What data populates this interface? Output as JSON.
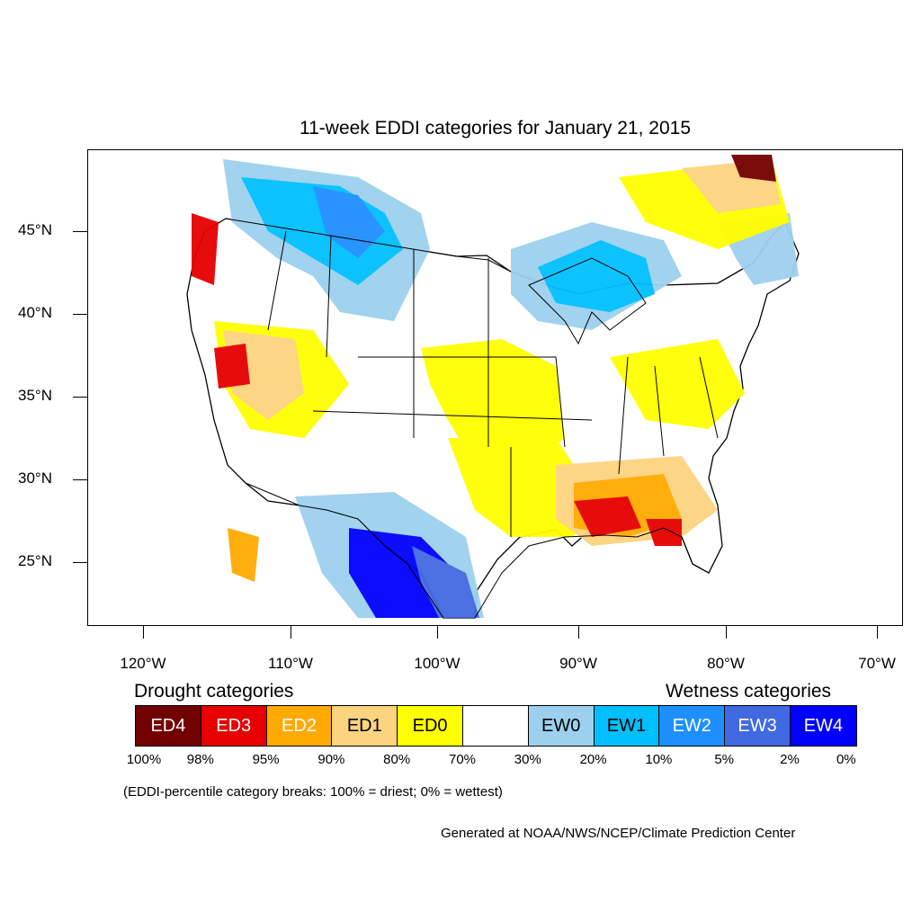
{
  "title": "11-week EDDI categories for January 21, 2015",
  "lat_labels": [
    "45°N",
    "40°N",
    "35°N",
    "30°N",
    "25°N"
  ],
  "lon_labels": [
    "120°W",
    "110°W",
    "100°W",
    "90°W",
    "80°W",
    "70°W"
  ],
  "legend": {
    "drought_heading": "Drought categories",
    "wetness_heading": "Wetness categories",
    "categories": [
      {
        "label": "ED4",
        "color": "#730000",
        "text_color": "#ffffff"
      },
      {
        "label": "ED3",
        "color": "#e60000",
        "text_color": "#ffffff"
      },
      {
        "label": "ED2",
        "color": "#ffaa00",
        "text_color": "#ffffff"
      },
      {
        "label": "ED1",
        "color": "#fcd37f",
        "text_color": "#000000"
      },
      {
        "label": "ED0",
        "color": "#ffff00",
        "text_color": "#000000"
      },
      {
        "label": "",
        "color": "#ffffff",
        "text_color": "#000000"
      },
      {
        "label": "EW0",
        "color": "#9dd0ee",
        "text_color": "#000000"
      },
      {
        "label": "EW1",
        "color": "#00bfff",
        "text_color": "#000000"
      },
      {
        "label": "EW2",
        "color": "#1e8fff",
        "text_color": "#ffffff"
      },
      {
        "label": "EW3",
        "color": "#4169e1",
        "text_color": "#ffffff"
      },
      {
        "label": "EW4",
        "color": "#0000ff",
        "text_color": "#ffffff"
      }
    ],
    "breaks": [
      "100%",
      "98%",
      "95%",
      "90%",
      "80%",
      "70%",
      "30%",
      "20%",
      "10%",
      "5%",
      "2%",
      "0%"
    ]
  },
  "note": "(EDDI-percentile category breaks: 100% = driest; 0% = wettest)",
  "credit": "Generated at NOAA/NWS/NCEP/Climate Prediction Center"
}
